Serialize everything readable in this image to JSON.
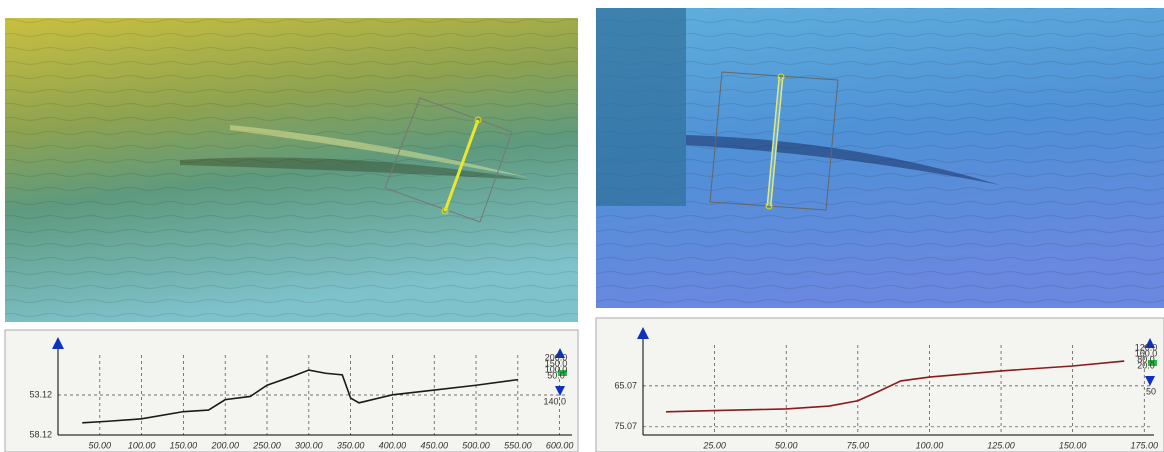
{
  "chart_data": [
    {
      "type": "line",
      "x": [
        29,
        60,
        100,
        150,
        180,
        200,
        230,
        250,
        280,
        300,
        320,
        340,
        350,
        360,
        400,
        450,
        500,
        550
      ],
      "series": [
        {
          "color": "#1a1a1a",
          "values": [
            56.6,
            56.4,
            56.1,
            55.2,
            55.0,
            53.7,
            53.3,
            51.9,
            50.8,
            50.0,
            50.4,
            50.6,
            53.5,
            54.1,
            53.1,
            52.5,
            51.9,
            51.2
          ]
        }
      ],
      "xlim": [
        0,
        610
      ],
      "ylim": [
        58.12,
        48.12
      ],
      "xticks": [
        {
          "value": 50,
          "label": "50.00"
        },
        {
          "value": 100,
          "label": "100.00"
        },
        {
          "value": 150,
          "label": "150.00"
        },
        {
          "value": 200,
          "label": "200.00"
        },
        {
          "value": 250,
          "label": "250.00"
        },
        {
          "value": 300,
          "label": "300.00"
        },
        {
          "value": 350,
          "label": "350.00"
        },
        {
          "value": 400,
          "label": "400.00"
        },
        {
          "value": 450,
          "label": "450.00"
        },
        {
          "value": 500,
          "label": "500.00"
        },
        {
          "value": 550,
          "label": "550.00"
        },
        {
          "value": 600,
          "label": "600.00"
        }
      ],
      "yticks": [
        53.12,
        58.12
      ],
      "annotations": [
        "200.0",
        "150.0",
        "100.0",
        "50.0",
        "140.0"
      ],
      "grid": true
    },
    {
      "type": "line",
      "x": [
        8,
        25,
        50,
        65,
        75,
        82,
        90,
        100,
        125,
        150,
        168
      ],
      "series": [
        {
          "color": "#8b1a1a",
          "values": [
            71.4,
            71.1,
            70.7,
            70.0,
            68.7,
            66.5,
            63.85,
            62.9,
            61.4,
            60.2,
            59.0
          ]
        }
      ],
      "xlim": [
        0,
        177
      ],
      "ylim": [
        77.07,
        55.07
      ],
      "xticks": [
        {
          "value": 25,
          "label": "25.00"
        },
        {
          "value": 50,
          "label": "50.00"
        },
        {
          "value": 75,
          "label": "75.00"
        },
        {
          "value": 100,
          "label": "100.00"
        },
        {
          "value": 125,
          "label": "125.00"
        },
        {
          "value": 150,
          "label": "150.00"
        },
        {
          "value": 175,
          "label": "175.00"
        }
      ],
      "yticks": [
        65.07,
        75.07
      ],
      "annotations": [
        "120.0",
        "160.0",
        "80.0",
        "20.0",
        "50"
      ],
      "grid": true
    }
  ]
}
